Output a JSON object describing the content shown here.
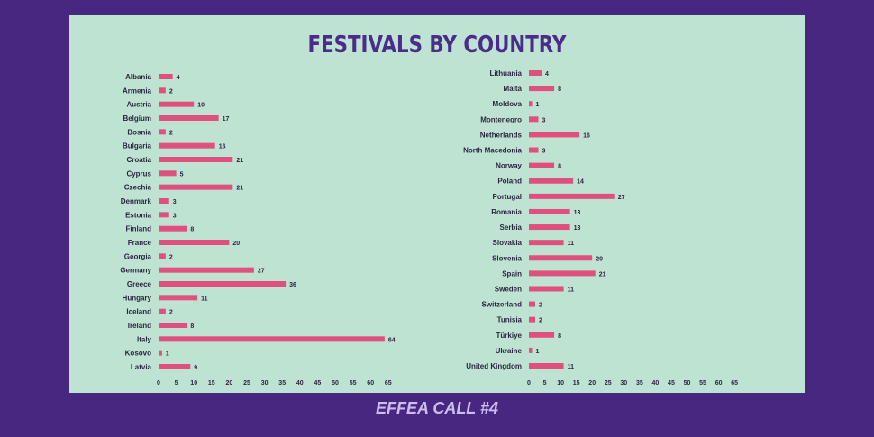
{
  "header": {
    "title": "FESTIVALS BY COUNTRY"
  },
  "footer": {
    "text": "EFFEA CALL #4"
  },
  "colors": {
    "background": "#47277f",
    "panel": "#bfe3d3",
    "bar": "#e0507e",
    "title": "#4a2c8b"
  },
  "chart_data": [
    {
      "type": "bar",
      "orientation": "horizontal",
      "xlim": [
        0,
        65
      ],
      "ticks": [
        0,
        5,
        10,
        15,
        20,
        25,
        30,
        35,
        40,
        45,
        50,
        55,
        60,
        65
      ],
      "grid": false,
      "categories": [
        "Albania",
        "Armenia",
        "Austria",
        "Belgium",
        "Bosnia",
        "Bulgaria",
        "Croatia",
        "Cyprus",
        "Czechia",
        "Denmark",
        "Estonia",
        "Finland",
        "France",
        "Georgia",
        "Germany",
        "Greece",
        "Hungary",
        "Iceland",
        "Ireland",
        "Italy",
        "Kosovo",
        "Latvia"
      ],
      "values": [
        4,
        2,
        10,
        17,
        2,
        16,
        21,
        5,
        21,
        3,
        3,
        8,
        20,
        2,
        27,
        36,
        11,
        2,
        8,
        64,
        1,
        9
      ]
    },
    {
      "type": "bar",
      "orientation": "horizontal",
      "xlim": [
        0,
        65
      ],
      "ticks": [
        0,
        5,
        10,
        15,
        20,
        25,
        30,
        35,
        40,
        45,
        50,
        55,
        60,
        65
      ],
      "grid": false,
      "categories": [
        "Lithuania",
        "Malta",
        "Moldova",
        "Montenegro",
        "Netherlands",
        "North Macedonia",
        "Norway",
        "Poland",
        "Portugal",
        "Romania",
        "Serbia",
        "Slovakia",
        "Slovenia",
        "Spain",
        "Sweden",
        "Switzerland",
        "Tunisia",
        "Türkiye",
        "Ukraine",
        "United Kingdom"
      ],
      "values": [
        4,
        8,
        1,
        3,
        16,
        3,
        8,
        14,
        27,
        13,
        13,
        11,
        20,
        21,
        11,
        2,
        2,
        8,
        1,
        11
      ]
    }
  ]
}
